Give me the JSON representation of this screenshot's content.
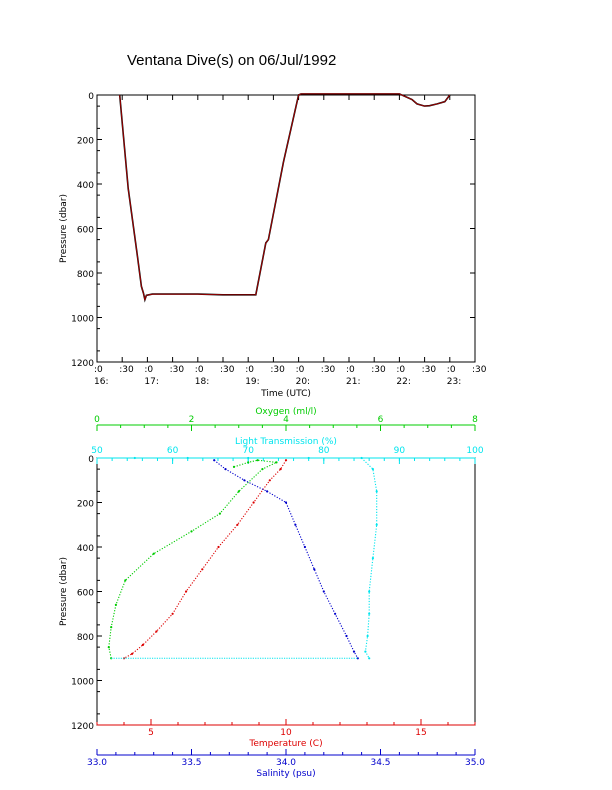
{
  "title": "Ventana Dive(s) on 06/Jul/1992",
  "colors": {
    "axis": "#000000",
    "oxygen": "#00cc00",
    "transmission": "#00e5ee",
    "temperature": "#dd0000",
    "salinity": "#0000cc",
    "pressure_trace": "#000000",
    "pressure_trace_overlay": "#cc0000"
  },
  "chart_data": [
    {
      "type": "line",
      "name_hint": "pressure-time",
      "xlabel": "Time (UTC)",
      "ylabel": "Pressure (dbar)",
      "xlim": [
        16.0,
        23.5
      ],
      "ylim": [
        1200,
        0
      ],
      "x_ticks": [
        {
          "v": 16.0,
          "top": ":0",
          "bottom": "16:"
        },
        {
          "v": 16.5,
          "top": ":30",
          "bottom": ""
        },
        {
          "v": 17.0,
          "top": ":0",
          "bottom": "17:"
        },
        {
          "v": 17.5,
          "top": ":30",
          "bottom": ""
        },
        {
          "v": 18.0,
          "top": ":0",
          "bottom": "18:"
        },
        {
          "v": 18.5,
          "top": ":30",
          "bottom": ""
        },
        {
          "v": 19.0,
          "top": ":0",
          "bottom": "19:"
        },
        {
          "v": 19.5,
          "top": ":30",
          "bottom": ""
        },
        {
          "v": 20.0,
          "top": ":0",
          "bottom": "20:"
        },
        {
          "v": 20.5,
          "top": ":30",
          "bottom": ""
        },
        {
          "v": 21.0,
          "top": ":0",
          "bottom": "21:"
        },
        {
          "v": 21.5,
          "top": ":30",
          "bottom": ""
        },
        {
          "v": 22.0,
          "top": ":0",
          "bottom": "22:"
        },
        {
          "v": 22.5,
          "top": ":30",
          "bottom": ""
        },
        {
          "v": 23.0,
          "top": ":0",
          "bottom": "23:"
        },
        {
          "v": 23.5,
          "top": ":30",
          "bottom": ""
        }
      ],
      "y_ticks": [
        0,
        200,
        400,
        600,
        800,
        1000,
        1200
      ],
      "x_unit": "hours UTC",
      "series": [
        {
          "x": [
            16.45,
            16.62,
            16.8,
            16.88,
            16.92,
            16.95,
            16.98,
            17.1,
            17.5,
            18.0,
            18.5,
            19.0,
            19.15,
            19.35,
            19.4,
            19.7,
            20.0,
            20.05,
            20.5,
            21.0,
            21.5,
            22.0,
            22.25,
            22.35,
            22.5,
            22.6,
            22.75,
            22.9,
            23.0
          ],
          "y": [
            0,
            420,
            720,
            860,
            890,
            920,
            900,
            895,
            895,
            895,
            898,
            898,
            898,
            665,
            650,
            300,
            0,
            -5,
            -5,
            -5,
            -5,
            -5,
            20,
            40,
            50,
            48,
            40,
            30,
            0
          ]
        }
      ]
    },
    {
      "type": "scatter",
      "name_hint": "profiles",
      "ylabel": "Pressure (dbar)",
      "ylim": [
        1200,
        0
      ],
      "y_ticks": [
        0,
        200,
        400,
        600,
        800,
        1000,
        1200
      ],
      "axes": {
        "oxygen": {
          "label": "Oxygen (ml/l)",
          "lim": [
            0,
            8
          ],
          "ticks": [
            0,
            2,
            4,
            6,
            8
          ]
        },
        "transmission": {
          "label": "Light Transmission (%)",
          "lim": [
            50,
            100
          ],
          "ticks": [
            50,
            60,
            70,
            80,
            90,
            100
          ]
        },
        "temperature": {
          "label": "Temperature (C)",
          "lim": [
            3,
            17
          ],
          "ticks": [
            5,
            10,
            15
          ]
        },
        "salinity": {
          "label": "Salinity (psu)",
          "lim": [
            33.0,
            35.0
          ],
          "ticks": [
            "33.0",
            "33.5",
            "34.0",
            "34.5",
            "35.0"
          ]
        }
      },
      "series": [
        {
          "name": "Oxygen (ml/l)",
          "axis": "oxygen",
          "x": [
            2.9,
            3.2,
            3.4,
            3.8,
            3.5,
            3.0,
            2.6,
            2.0,
            1.2,
            0.6,
            0.4,
            0.3,
            0.25,
            0.3
          ],
          "y": [
            40,
            20,
            10,
            20,
            50,
            150,
            250,
            330,
            430,
            550,
            660,
            760,
            850,
            900
          ]
        },
        {
          "name": "Light Transmission (%)",
          "axis": "transmission",
          "x": [
            55,
            62,
            70,
            78,
            85,
            86.5,
            87,
            87,
            86.5,
            86,
            86,
            85.8,
            85.5,
            86
          ],
          "y": [
            0,
            0,
            0,
            0,
            0,
            50,
            150,
            300,
            450,
            600,
            700,
            800,
            870,
            900
          ]
        },
        {
          "name": "Temperature (C)",
          "axis": "temperature",
          "x": [
            10.0,
            9.8,
            9.4,
            8.8,
            8.2,
            7.5,
            6.9,
            6.3,
            5.8,
            5.2,
            4.7,
            4.3,
            4.0
          ],
          "y": [
            10,
            50,
            100,
            200,
            300,
            400,
            500,
            600,
            700,
            780,
            840,
            880,
            900
          ]
        },
        {
          "name": "Salinity (psu)",
          "axis": "salinity",
          "x": [
            33.62,
            33.68,
            33.78,
            33.9,
            34.0,
            34.05,
            34.1,
            34.15,
            34.2,
            34.26,
            34.32,
            34.36,
            34.38
          ],
          "y": [
            10,
            50,
            100,
            150,
            200,
            300,
            400,
            500,
            600,
            700,
            800,
            870,
            900
          ]
        }
      ]
    }
  ]
}
